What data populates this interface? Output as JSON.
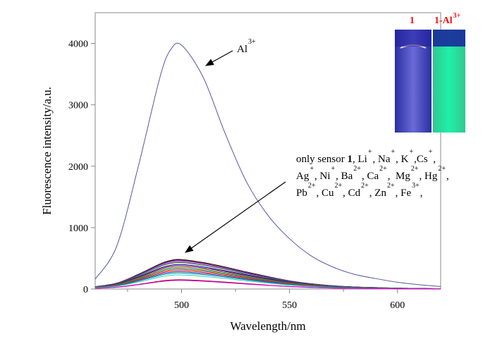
{
  "chart_data": {
    "type": "line",
    "xlabel": "Wavelength/nm",
    "ylabel": "Fluorescence intensity/a.u.",
    "xlim": [
      460,
      620
    ],
    "ylim": [
      0,
      4500
    ],
    "xticks": [
      500,
      550,
      600
    ],
    "xminor": [
      475,
      525,
      575
    ],
    "yticks": [
      0,
      1000,
      2000,
      3000,
      4000
    ],
    "grid": false,
    "x": [
      460,
      470,
      480,
      490,
      495,
      500,
      510,
      520,
      530,
      540,
      550,
      560,
      570,
      580,
      590,
      600,
      610,
      620
    ],
    "series": [
      {
        "name": "Al3+",
        "color": "#5555aa",
        "values": [
          160,
          700,
          2000,
          3450,
          3900,
          3970,
          3450,
          2550,
          1750,
          1200,
          820,
          540,
          360,
          240,
          170,
          110,
          70,
          40
        ]
      },
      {
        "name": "only sensor 1",
        "color": "#000000",
        "values": [
          38,
          96,
          240,
          408,
          466,
          480,
          432,
          360,
          278,
          202,
          134,
          86,
          53,
          34,
          24,
          14,
          10,
          5
        ]
      },
      {
        "name": "Li+",
        "color": "#cc2222",
        "values": [
          38,
          94,
          235,
          400,
          456,
          470,
          423,
          353,
          273,
          197,
          132,
          85,
          52,
          33,
          24,
          14,
          9,
          5
        ]
      },
      {
        "name": "Na+",
        "color": "#2222cc",
        "values": [
          37,
          92,
          230,
          391,
          446,
          460,
          414,
          345,
          267,
          193,
          129,
          83,
          51,
          32,
          23,
          14,
          9,
          5
        ]
      },
      {
        "name": "K+",
        "color": "#cc22cc",
        "values": [
          35,
          88,
          220,
          374,
          427,
          440,
          396,
          330,
          255,
          185,
          123,
          79,
          48,
          31,
          22,
          13,
          9,
          4
        ]
      },
      {
        "name": "Cs+",
        "color": "#228822",
        "values": [
          34,
          86,
          215,
          366,
          417,
          430,
          387,
          323,
          249,
          181,
          120,
          77,
          47,
          30,
          22,
          13,
          9,
          4
        ]
      },
      {
        "name": "Ag+",
        "color": "#000088",
        "values": [
          32,
          80,
          200,
          340,
          388,
          400,
          360,
          300,
          232,
          168,
          112,
          72,
          44,
          28,
          20,
          12,
          8,
          4
        ]
      },
      {
        "name": "Ni+",
        "color": "#880088",
        "values": [
          30,
          76,
          190,
          323,
          369,
          380,
          342,
          285,
          220,
          160,
          106,
          68,
          42,
          27,
          19,
          11,
          8,
          4
        ]
      },
      {
        "name": "Ba2+",
        "color": "#888800",
        "values": [
          29,
          72,
          180,
          306,
          349,
          360,
          324,
          270,
          209,
          151,
          101,
          65,
          40,
          25,
          18,
          11,
          7,
          4
        ]
      },
      {
        "name": "Ca2+",
        "color": "#008888",
        "values": [
          27,
          68,
          170,
          289,
          330,
          340,
          306,
          255,
          197,
          143,
          95,
          61,
          37,
          24,
          17,
          10,
          7,
          3
        ]
      },
      {
        "name": "Mg2+",
        "color": "#aa4400",
        "values": [
          26,
          64,
          160,
          272,
          310,
          320,
          288,
          240,
          186,
          134,
          90,
          58,
          35,
          22,
          16,
          10,
          6,
          3
        ]
      },
      {
        "name": "Hg2+",
        "color": "#ff2222",
        "values": [
          24,
          60,
          150,
          255,
          291,
          300,
          270,
          225,
          174,
          126,
          84,
          54,
          33,
          21,
          15,
          9,
          6,
          3
        ]
      },
      {
        "name": "Pb2+",
        "color": "#1144ff",
        "values": [
          22,
          56,
          140,
          238,
          272,
          280,
          252,
          210,
          162,
          118,
          78,
          50,
          31,
          20,
          14,
          8,
          6,
          3
        ]
      },
      {
        "name": "Cu2+",
        "color": "#009966",
        "values": [
          21,
          52,
          130,
          221,
          252,
          260,
          234,
          195,
          151,
          109,
          73,
          47,
          29,
          18,
          13,
          8,
          5,
          3
        ]
      },
      {
        "name": "Cd2+",
        "color": "#22cccc",
        "values": [
          18,
          46,
          115,
          196,
          223,
          230,
          207,
          173,
          133,
          97,
          64,
          41,
          25,
          16,
          12,
          7,
          5,
          2
        ]
      },
      {
        "name": "Zn2+",
        "color": "#880000",
        "values": [
          12,
          30,
          75,
          128,
          146,
          150,
          135,
          113,
          87,
          63,
          42,
          27,
          17,
          11,
          8,
          5,
          3,
          2
        ]
      },
      {
        "name": "Fe3+",
        "color": "#ee00ee",
        "values": [
          11,
          28,
          70,
          119,
          136,
          140,
          126,
          105,
          81,
          59,
          39,
          25,
          15,
          10,
          7,
          4,
          3,
          1
        ]
      }
    ],
    "annotations": {
      "al_label": {
        "base": "Al",
        "sup": "3+"
      },
      "others": [
        [
          [
            "only sensor ",
            ""
          ],
          [
            "1",
            "",
            " bold"
          ],
          [
            ", Li",
            "+"
          ],
          [
            ", Na",
            "+"
          ],
          [
            ", K",
            "+"
          ],
          [
            ",Cs",
            "+"
          ],
          [
            ",",
            ""
          ]
        ],
        [
          [
            "Ag",
            "+"
          ],
          [
            ", Ni",
            "+"
          ],
          [
            ", Ba",
            "2+"
          ],
          [
            ", Ca",
            "2+"
          ],
          [
            ",  Mg",
            "2+"
          ],
          [
            ", Hg",
            "2+"
          ],
          [
            ",",
            ""
          ]
        ],
        [
          [
            "Pb",
            "2+"
          ],
          [
            ", Cu",
            "2+"
          ],
          [
            ", Cd",
            "2+"
          ],
          [
            ", Zn",
            "2+"
          ],
          [
            ", Fe",
            "3+"
          ],
          [
            ",",
            ""
          ]
        ]
      ]
    },
    "inset": {
      "label_left": "1",
      "label_right_base": "1-Al",
      "label_right_sup": "3+"
    }
  }
}
